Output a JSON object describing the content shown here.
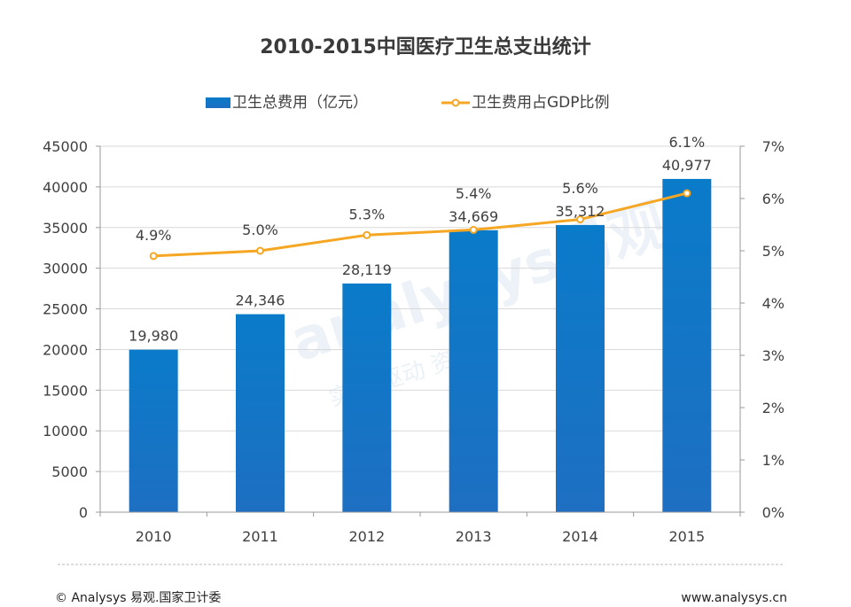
{
  "chart_data": {
    "type": "bar",
    "title": "2010-2015中国医疗卫生总支出统计",
    "categories": [
      "2010",
      "2011",
      "2012",
      "2013",
      "2014",
      "2015"
    ],
    "series": [
      {
        "name": "卫生总费用（亿元）",
        "type": "bar",
        "axis": "left",
        "values": [
          19980,
          24346,
          28119,
          34669,
          35312,
          40977
        ],
        "labels": [
          "19,980",
          "24,346",
          "28,119",
          "34,669",
          "35,312",
          "40,977"
        ],
        "color": "#1a7ac4"
      },
      {
        "name": "卫生费用占GDP比例",
        "type": "line",
        "axis": "right",
        "values": [
          4.9,
          5.0,
          5.3,
          5.4,
          5.6,
          6.1
        ],
        "labels": [
          "4.9%",
          "5.0%",
          "5.3%",
          "5.4%",
          "5.6%",
          "6.1%"
        ],
        "color": "#f5a623"
      }
    ],
    "ylim_left": [
      0,
      45000
    ],
    "yticks_left": [
      "0",
      "5000",
      "10000",
      "15000",
      "20000",
      "25000",
      "30000",
      "35000",
      "40000",
      "45000"
    ],
    "ylim_right": [
      0,
      7
    ],
    "yticks_right": [
      "0%",
      "1%",
      "2%",
      "3%",
      "4%",
      "5%",
      "6%",
      "7%"
    ],
    "legend_position": "top-center",
    "grid": true
  },
  "footer": {
    "source": "© Analysys 易观.国家卫计委",
    "url": "www.analysys.cn"
  },
  "watermark": {
    "brand": "analysys易观",
    "slogan": "实时 驱动 资产"
  }
}
